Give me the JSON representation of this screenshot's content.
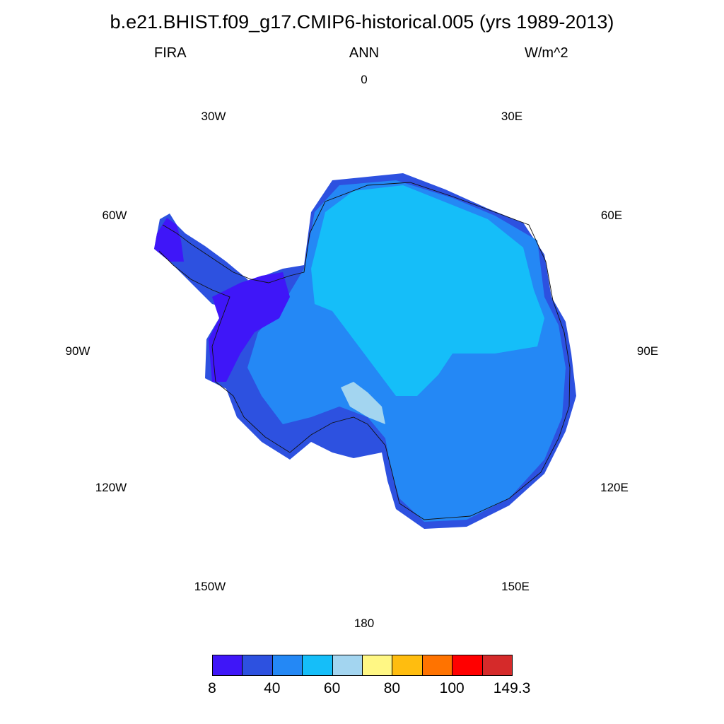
{
  "title": "b.e21.BHIST.f09_g17.CMIP6-historical.005 (yrs 1989-2013)",
  "subtitle": {
    "variable": "FIRA",
    "season": "ANN",
    "units": "W/m^2"
  },
  "longitude_labels": {
    "lon_0": "0",
    "lon_30e": "30E",
    "lon_60e": "60E",
    "lon_90e": "90E",
    "lon_120e": "120E",
    "lon_150e": "150E",
    "lon_180": "180",
    "lon_150w": "150W",
    "lon_120w": "120W",
    "lon_90w": "90W",
    "lon_60w": "60W",
    "lon_30w": "30W"
  },
  "colorbar": {
    "colors": [
      "#3f16f8",
      "#2d51e0",
      "#2488f5",
      "#15bef9",
      "#a3d5f0",
      "#fff784",
      "#ffbd0f",
      "#ff7300",
      "#ff0000",
      "#d52a2a"
    ],
    "labels": [
      "8",
      "40",
      "60",
      "80",
      "100",
      "149.3"
    ]
  },
  "map_colors": {
    "lowest": "#3f16f8",
    "low": "#2d51e0",
    "mid": "#2488f5",
    "high": "#15bef9",
    "highest": "#a3d5f0"
  }
}
